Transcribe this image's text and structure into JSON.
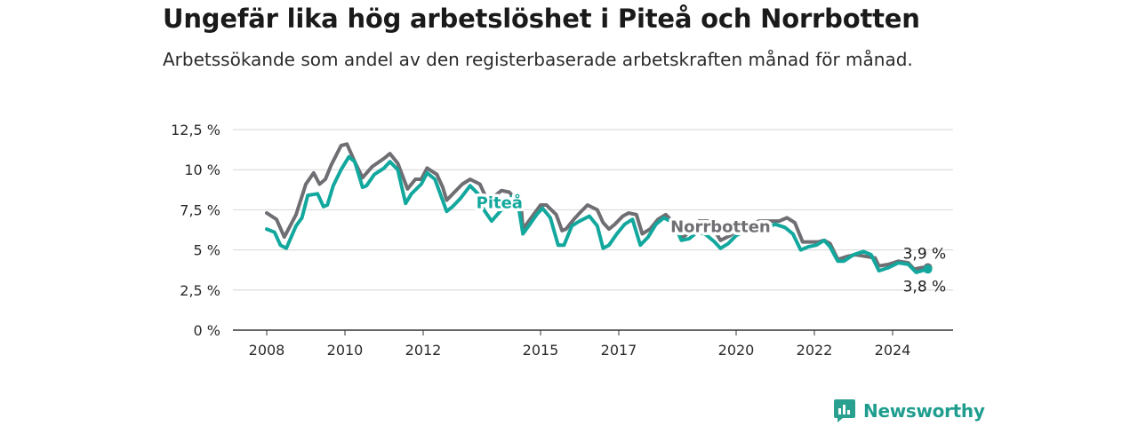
{
  "header": {
    "title": "Ungefär lika hög arbetslöshet i Piteå och Norrbotten",
    "subtitle": "Arbetssökande som andel av den registerbaserade arbetskraften månad för månad."
  },
  "brand": {
    "name": "Newsworthy",
    "icon": "newsworthy-logo-icon",
    "color": "#2aa090"
  },
  "chart_data": {
    "type": "line",
    "title": "Ungefär lika hög arbetslöshet i Piteå och Norrbotten",
    "subtitle": "Arbetssökande som andel av den registerbaserade arbetskraften månad för månad.",
    "xlabel": "",
    "ylabel": "",
    "xlim": [
      2008,
      2024.9
    ],
    "ylim": [
      0,
      12.5
    ],
    "y_ticks": [
      0,
      2.5,
      5,
      7.5,
      10,
      12.5
    ],
    "y_tick_labels": [
      "0 %",
      "2,5 %",
      "5 %",
      "7,5 %",
      "10 %",
      "12,5 %"
    ],
    "x_ticks": [
      2008,
      2010,
      2012,
      2015,
      2017,
      2020,
      2022,
      2024
    ],
    "x_tick_labels": [
      "2008",
      "2010",
      "2012",
      "2015",
      "2017",
      "2020",
      "2022",
      "2024"
    ],
    "grid": "horizontal",
    "legend": "inline labels",
    "series": [
      {
        "name": "Norrbotten",
        "color": "#6e6e73",
        "end_label": "3,9 %",
        "points": [
          [
            2008.0,
            7.3
          ],
          [
            2008.25,
            6.9
          ],
          [
            2008.45,
            5.8
          ],
          [
            2008.75,
            7.2
          ],
          [
            2009.0,
            9.1
          ],
          [
            2009.2,
            9.8
          ],
          [
            2009.35,
            9.1
          ],
          [
            2009.5,
            9.4
          ],
          [
            2009.65,
            10.3
          ],
          [
            2009.9,
            11.5
          ],
          [
            2010.05,
            11.6
          ],
          [
            2010.25,
            10.5
          ],
          [
            2010.45,
            9.5
          ],
          [
            2010.7,
            10.2
          ],
          [
            2011.0,
            10.7
          ],
          [
            2011.15,
            11.0
          ],
          [
            2011.35,
            10.4
          ],
          [
            2011.6,
            8.8
          ],
          [
            2011.8,
            9.4
          ],
          [
            2011.95,
            9.4
          ],
          [
            2012.1,
            10.1
          ],
          [
            2012.35,
            9.7
          ],
          [
            2012.5,
            8.9
          ],
          [
            2012.6,
            8.1
          ],
          [
            2012.8,
            8.6
          ],
          [
            2013.0,
            9.1
          ],
          [
            2013.2,
            9.4
          ],
          [
            2013.45,
            9.1
          ],
          [
            2013.6,
            8.3
          ],
          [
            2013.8,
            8.3
          ],
          [
            2014.0,
            8.7
          ],
          [
            2014.2,
            8.6
          ],
          [
            2014.5,
            7.8
          ],
          [
            2014.55,
            6.3
          ],
          [
            2014.7,
            6.8
          ],
          [
            2014.85,
            7.3
          ],
          [
            2015.0,
            7.8
          ],
          [
            2015.15,
            7.8
          ],
          [
            2015.4,
            7.2
          ],
          [
            2015.55,
            6.2
          ],
          [
            2015.65,
            6.3
          ],
          [
            2015.85,
            6.9
          ],
          [
            2016.0,
            7.3
          ],
          [
            2016.2,
            7.8
          ],
          [
            2016.45,
            7.5
          ],
          [
            2016.6,
            6.7
          ],
          [
            2016.75,
            6.3
          ],
          [
            2016.9,
            6.6
          ],
          [
            2017.1,
            7.1
          ],
          [
            2017.25,
            7.3
          ],
          [
            2017.45,
            7.2
          ],
          [
            2017.6,
            6.0
          ],
          [
            2017.8,
            6.3
          ],
          [
            2018.0,
            6.9
          ],
          [
            2018.2,
            7.2
          ],
          [
            2018.45,
            6.6
          ],
          [
            2018.65,
            5.8
          ],
          [
            2018.85,
            6.2
          ],
          [
            2019.05,
            6.8
          ],
          [
            2019.3,
            6.8
          ],
          [
            2019.45,
            6.2
          ],
          [
            2019.6,
            5.6
          ],
          [
            2019.85,
            5.9
          ],
          [
            2020.1,
            6.4
          ],
          [
            2020.3,
            6.6
          ],
          [
            2020.6,
            6.8
          ],
          [
            2020.85,
            6.8
          ],
          [
            2021.1,
            6.8
          ],
          [
            2021.3,
            7.0
          ],
          [
            2021.5,
            6.7
          ],
          [
            2021.7,
            5.5
          ],
          [
            2021.95,
            5.5
          ],
          [
            2022.1,
            5.5
          ],
          [
            2022.25,
            5.6
          ],
          [
            2022.4,
            5.4
          ],
          [
            2022.6,
            4.4
          ],
          [
            2022.85,
            4.6
          ],
          [
            2023.05,
            4.7
          ],
          [
            2023.3,
            4.6
          ],
          [
            2023.55,
            4.5
          ],
          [
            2023.65,
            4.0
          ],
          [
            2023.9,
            4.1
          ],
          [
            2024.15,
            4.3
          ],
          [
            2024.4,
            4.2
          ],
          [
            2024.55,
            3.8
          ],
          [
            2024.75,
            3.9
          ],
          [
            2024.9,
            3.9
          ]
        ]
      },
      {
        "name": "Piteå",
        "color": "#13a89e",
        "end_label": "3,8 %",
        "points": [
          [
            2008.0,
            6.3
          ],
          [
            2008.2,
            6.1
          ],
          [
            2008.35,
            5.3
          ],
          [
            2008.5,
            5.1
          ],
          [
            2008.75,
            6.5
          ],
          [
            2008.9,
            7.0
          ],
          [
            2009.05,
            8.4
          ],
          [
            2009.3,
            8.5
          ],
          [
            2009.45,
            7.7
          ],
          [
            2009.55,
            7.8
          ],
          [
            2009.7,
            9.0
          ],
          [
            2009.9,
            10.0
          ],
          [
            2010.1,
            10.8
          ],
          [
            2010.25,
            10.5
          ],
          [
            2010.45,
            8.9
          ],
          [
            2010.55,
            9.0
          ],
          [
            2010.75,
            9.7
          ],
          [
            2011.0,
            10.1
          ],
          [
            2011.15,
            10.5
          ],
          [
            2011.35,
            10.0
          ],
          [
            2011.55,
            7.9
          ],
          [
            2011.7,
            8.5
          ],
          [
            2011.95,
            9.1
          ],
          [
            2012.1,
            9.8
          ],
          [
            2012.3,
            9.4
          ],
          [
            2012.45,
            8.4
          ],
          [
            2012.6,
            7.4
          ],
          [
            2012.75,
            7.7
          ],
          [
            2012.95,
            8.2
          ],
          [
            2013.2,
            9.0
          ],
          [
            2013.4,
            8.5
          ],
          [
            2013.55,
            7.5
          ],
          [
            2013.75,
            6.8
          ],
          [
            2014.0,
            7.5
          ],
          [
            2014.25,
            8.3
          ],
          [
            2014.45,
            7.5
          ],
          [
            2014.55,
            6.0
          ],
          [
            2014.7,
            6.5
          ],
          [
            2014.9,
            7.2
          ],
          [
            2015.05,
            7.6
          ],
          [
            2015.25,
            7.0
          ],
          [
            2015.45,
            5.3
          ],
          [
            2015.6,
            5.3
          ],
          [
            2015.8,
            6.5
          ],
          [
            2016.0,
            6.8
          ],
          [
            2016.25,
            7.1
          ],
          [
            2016.45,
            6.5
          ],
          [
            2016.6,
            5.1
          ],
          [
            2016.75,
            5.3
          ],
          [
            2016.95,
            6.0
          ],
          [
            2017.15,
            6.6
          ],
          [
            2017.35,
            6.9
          ],
          [
            2017.55,
            5.3
          ],
          [
            2017.75,
            5.8
          ],
          [
            2017.95,
            6.6
          ],
          [
            2018.15,
            7.0
          ],
          [
            2018.4,
            6.7
          ],
          [
            2018.6,
            5.6
          ],
          [
            2018.8,
            5.7
          ],
          [
            2019.0,
            6.1
          ],
          [
            2019.2,
            6.0
          ],
          [
            2019.45,
            5.5
          ],
          [
            2019.6,
            5.1
          ],
          [
            2019.8,
            5.4
          ],
          [
            2020.0,
            5.9
          ],
          [
            2020.25,
            6.2
          ],
          [
            2020.5,
            6.1
          ],
          [
            2020.75,
            6.4
          ],
          [
            2021.0,
            6.6
          ],
          [
            2021.25,
            6.4
          ],
          [
            2021.45,
            6.0
          ],
          [
            2021.65,
            5.0
          ],
          [
            2021.85,
            5.2
          ],
          [
            2022.05,
            5.3
          ],
          [
            2022.25,
            5.6
          ],
          [
            2022.4,
            5.2
          ],
          [
            2022.6,
            4.3
          ],
          [
            2022.75,
            4.3
          ],
          [
            2023.0,
            4.7
          ],
          [
            2023.25,
            4.9
          ],
          [
            2023.45,
            4.7
          ],
          [
            2023.65,
            3.7
          ],
          [
            2023.9,
            3.9
          ],
          [
            2024.15,
            4.2
          ],
          [
            2024.4,
            4.1
          ],
          [
            2024.6,
            3.6
          ],
          [
            2024.75,
            3.7
          ],
          [
            2024.9,
            3.8
          ]
        ]
      }
    ]
  }
}
